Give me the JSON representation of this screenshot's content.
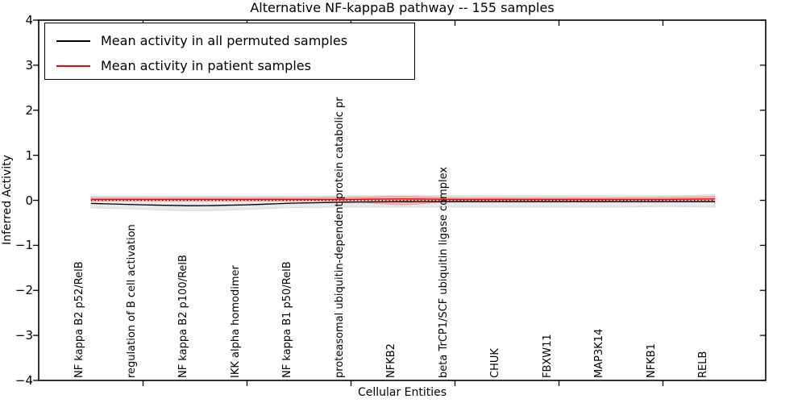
{
  "title": "Alternative NF-kappaB pathway -- 155 samples",
  "axes": {
    "ylabel": "Inferred Activity",
    "xlabel": "Cellular Entities",
    "ytick_labels": [
      "4",
      "3",
      "2",
      "1",
      "0",
      "−1",
      "−2",
      "−3",
      "−4"
    ]
  },
  "legend": {
    "entries": [
      {
        "label": "Mean activity in all permuted samples",
        "color": "#000000"
      },
      {
        "label": "Mean activity in patient samples",
        "color": "#ff0000"
      }
    ],
    "position": "upper left"
  },
  "colors": {
    "permuted_line": "#000000",
    "patient_line": "#ff0000",
    "permuted_band": "#e9e9e9",
    "permuted_band_edge": "#d8d8d8",
    "patient_band": "rgba(255,70,70,0.32)",
    "patient_band_edge": "rgba(255,60,60,0.35)",
    "axis": "#000000"
  },
  "chart_data": {
    "type": "line",
    "title": "Alternative NF-kappaB pathway -- 155 samples",
    "xlabel": "Cellular Entities",
    "ylabel": "Inferred Activity",
    "ylim": [
      -4,
      4
    ],
    "yticks": [
      4,
      3,
      2,
      1,
      0,
      -1,
      -2,
      -3,
      -4
    ],
    "grid": false,
    "legend_position": "upper left",
    "zero_reference_line": "dotted black at y=0 spanning the data range",
    "xticks_at_category_indices": [
      1,
      3,
      5,
      7,
      9,
      11
    ],
    "categories": [
      "NF kappa B2 p52/RelB",
      "regulation of B cell activation",
      "NF kappa B2 p100/RelB",
      "IKK alpha homodimer",
      "NF kappa B1 p50/RelB",
      "proteasomal ubiquitin-dependent protein catabolic pr",
      "NFKB2",
      "beta TrCP1/SCF ubiquitin ligase complex",
      "CHUK",
      "FBXW11",
      "MAP3K14",
      "NFKB1",
      "RELB"
    ],
    "series": [
      {
        "name": "Mean activity in all permuted samples",
        "color": "#000000",
        "values": [
          -0.07,
          -0.1,
          -0.12,
          -0.1,
          -0.06,
          -0.04,
          -0.03,
          -0.03,
          -0.03,
          -0.03,
          -0.03,
          -0.03,
          -0.03
        ],
        "band_upper": [
          0.09,
          0.09,
          0.09,
          0.09,
          0.09,
          0.1,
          0.1,
          0.1,
          0.1,
          0.1,
          0.1,
          0.1,
          0.12
        ],
        "band_lower": [
          -0.17,
          -0.2,
          -0.23,
          -0.2,
          -0.16,
          -0.15,
          -0.15,
          -0.15,
          -0.15,
          -0.15,
          -0.15,
          -0.14,
          -0.15
        ],
        "band_meaning": "spread of permuted-sample mean activity"
      },
      {
        "name": "Mean activity in patient samples",
        "color": "#ff0000",
        "values": [
          0.02,
          0.02,
          0.02,
          0.02,
          0.02,
          0.02,
          0.03,
          0.02,
          0.02,
          0.02,
          0.02,
          0.02,
          0.03
        ],
        "band_upper": [
          0.06,
          0.06,
          0.06,
          0.06,
          0.06,
          0.07,
          0.09,
          0.06,
          0.06,
          0.06,
          0.06,
          0.07,
          0.09
        ],
        "band_lower": [
          -0.02,
          -0.02,
          -0.02,
          -0.02,
          -0.02,
          -0.03,
          -0.1,
          -0.02,
          -0.02,
          -0.02,
          -0.02,
          -0.03,
          -0.04
        ],
        "band_meaning": "spread of patient-sample activity, widest at NFKB2"
      }
    ]
  }
}
